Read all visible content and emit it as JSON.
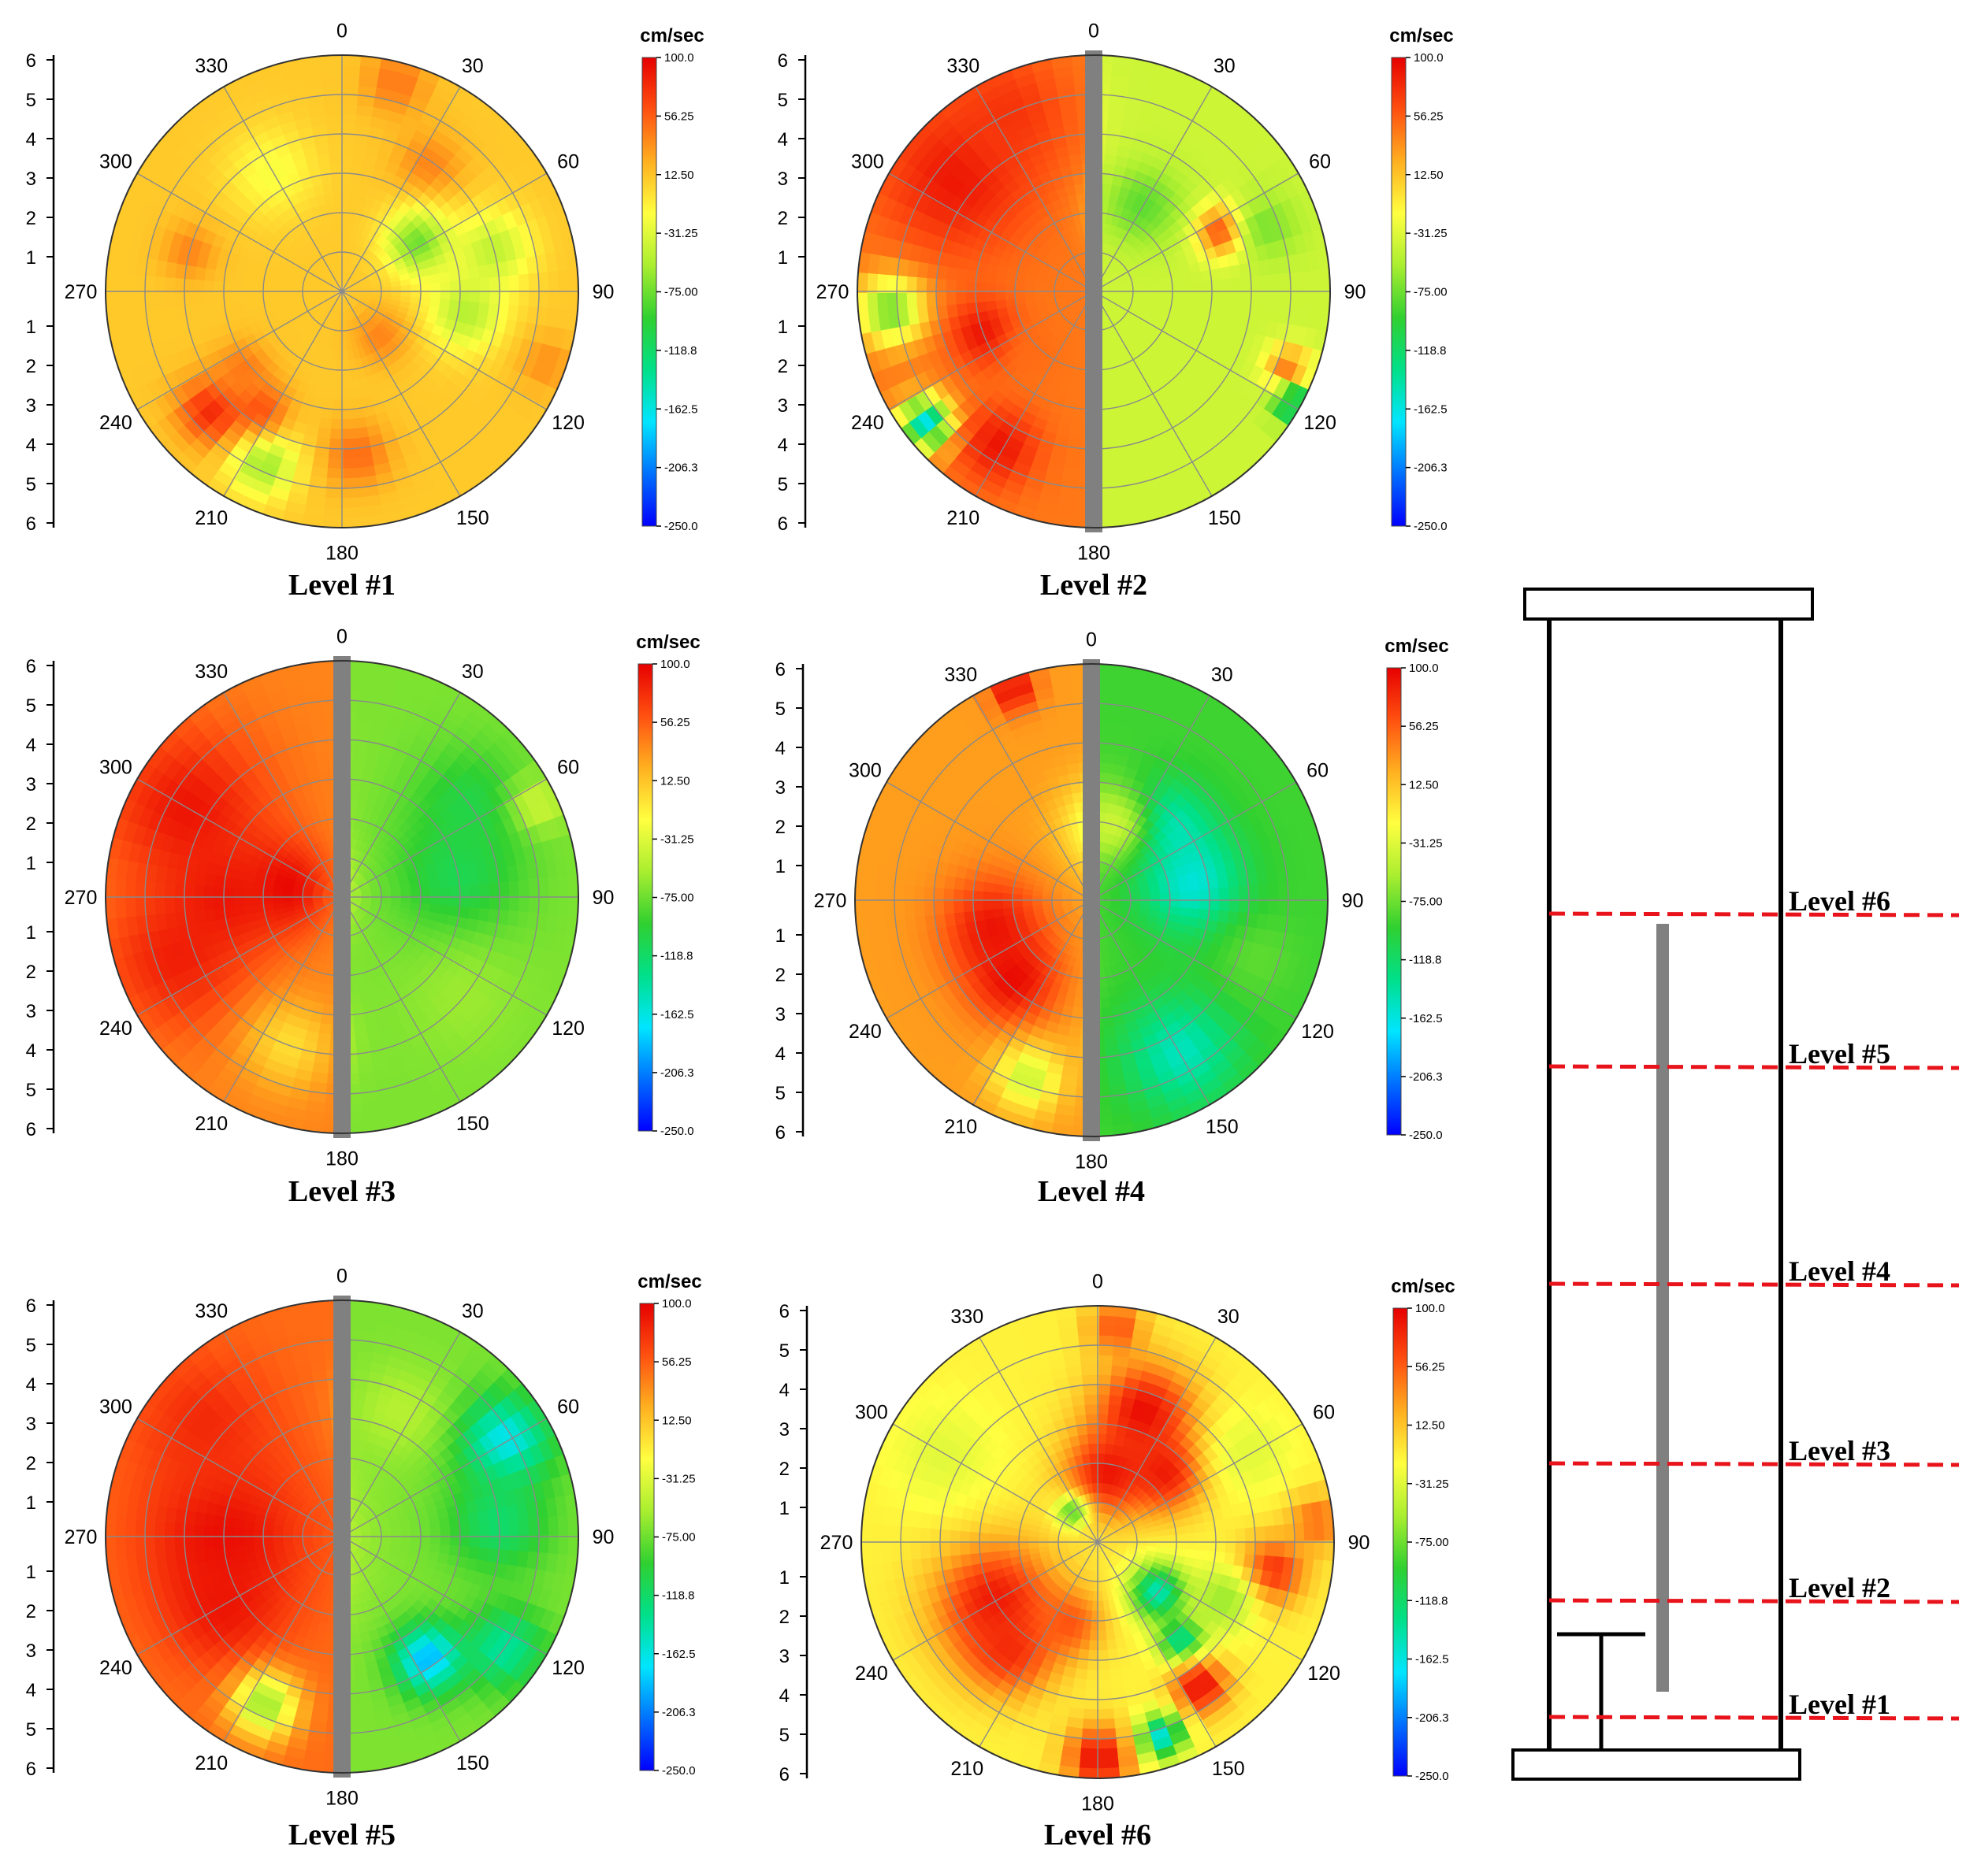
{
  "colorbar": {
    "unit": "cm/sec",
    "ticks": [
      "100.0",
      "56.25",
      "12.50",
      "-31.25",
      "-75.00",
      "-118.8",
      "-162.5",
      "-206.3",
      "-250.0"
    ],
    "min": -250,
    "max": 100,
    "colors": [
      "#0000ff",
      "#0070ff",
      "#00e5ff",
      "#00e08a",
      "#30d030",
      "#aaee30",
      "#ffff40",
      "#ffb020",
      "#ff5010",
      "#e60000"
    ]
  },
  "chart_data": [
    {
      "type": "heatmap",
      "title": "Level #1",
      "angle_ticks": [
        "0",
        "30",
        "60",
        "90",
        "120",
        "150",
        "180",
        "210",
        "240",
        "270",
        "300",
        "330"
      ],
      "radial_ticks": [
        "1",
        "2",
        "3",
        "4",
        "5",
        "6"
      ],
      "radial_range": [
        0,
        6
      ],
      "center_rod": false,
      "base": 10,
      "features": [
        {
          "angle": 15,
          "r": 5.5,
          "value": 45,
          "spread": 0.6
        },
        {
          "angle": 35,
          "r": 3.9,
          "value": 40,
          "spread": 0.6
        },
        {
          "angle": 58,
          "r": 2.3,
          "value": -75,
          "spread": 0.6
        },
        {
          "angle": 75,
          "r": 4.0,
          "value": -45,
          "spread": 0.7
        },
        {
          "angle": 100,
          "r": 3.2,
          "value": -50,
          "spread": 0.7
        },
        {
          "angle": 110,
          "r": 5.5,
          "value": 35,
          "spread": 0.5
        },
        {
          "angle": 140,
          "r": 1.5,
          "value": 40,
          "spread": 0.5
        },
        {
          "angle": 175,
          "r": 4.2,
          "value": 50,
          "spread": 0.6
        },
        {
          "angle": 205,
          "r": 4.8,
          "value": -60,
          "spread": 0.6
        },
        {
          "angle": 215,
          "r": 3.6,
          "value": 60,
          "spread": 0.5
        },
        {
          "angle": 228,
          "r": 4.5,
          "value": 80,
          "spread": 0.6
        },
        {
          "angle": 232,
          "r": 3.2,
          "value": 45,
          "spread": 0.5
        },
        {
          "angle": 285,
          "r": 4.0,
          "value": 40,
          "spread": 0.5
        },
        {
          "angle": 330,
          "r": 3.5,
          "value": -20,
          "spread": 0.8
        }
      ]
    },
    {
      "type": "heatmap",
      "title": "Level #2",
      "angle_ticks": [
        "0",
        "30",
        "60",
        "90",
        "120",
        "150",
        "180",
        "210",
        "240",
        "270",
        "300",
        "330"
      ],
      "radial_ticks": [
        "1",
        "2",
        "3",
        "4",
        "5",
        "6"
      ],
      "radial_range": [
        0,
        6
      ],
      "center_rod": true,
      "left_base": 45,
      "right_base": -40,
      "features": [
        {
          "angle": 310,
          "r": 4.5,
          "value": 90,
          "spread": 1.3
        },
        {
          "angle": 335,
          "r": 5.0,
          "value": 75,
          "spread": 1.0
        },
        {
          "angle": 265,
          "r": 5.2,
          "value": -75,
          "spread": 0.6
        },
        {
          "angle": 250,
          "r": 3.0,
          "value": 90,
          "spread": 0.6
        },
        {
          "angle": 232,
          "r": 5.4,
          "value": -170,
          "spread": 0.45
        },
        {
          "angle": 212,
          "r": 4.6,
          "value": 90,
          "spread": 0.7
        },
        {
          "angle": 225,
          "r": 2.2,
          "value": 50,
          "spread": 0.5
        },
        {
          "angle": 65,
          "r": 3.6,
          "value": 80,
          "spread": 0.45
        },
        {
          "angle": 70,
          "r": 4.7,
          "value": -70,
          "spread": 0.6
        },
        {
          "angle": 112,
          "r": 5.3,
          "value": 50,
          "spread": 0.4
        },
        {
          "angle": 120,
          "r": 5.8,
          "value": -130,
          "spread": 0.35
        },
        {
          "angle": 30,
          "r": 2.5,
          "value": -80,
          "spread": 0.7
        }
      ]
    },
    {
      "type": "heatmap",
      "title": "Level #3",
      "angle_ticks": [
        "0",
        "30",
        "60",
        "90",
        "120",
        "150",
        "180",
        "210",
        "240",
        "270",
        "300",
        "330"
      ],
      "radial_ticks": [
        "1",
        "2",
        "3",
        "4",
        "5",
        "6"
      ],
      "radial_range": [
        0,
        6
      ],
      "center_rod": true,
      "left_base": 40,
      "right_base": -70,
      "features": [
        {
          "angle": 280,
          "r": 1.5,
          "value": 100,
          "spread": 0.8
        },
        {
          "angle": 300,
          "r": 4.5,
          "value": 90,
          "spread": 1.5
        },
        {
          "angle": 250,
          "r": 4.5,
          "value": 85,
          "spread": 1.3
        },
        {
          "angle": 270,
          "r": 3.0,
          "value": 90,
          "spread": 1.0
        },
        {
          "angle": 200,
          "r": 4.0,
          "value": 0,
          "spread": 0.8
        },
        {
          "angle": 80,
          "r": 3.0,
          "value": -110,
          "spread": 1.1
        },
        {
          "angle": 55,
          "r": 4.0,
          "value": -105,
          "spread": 1.0
        },
        {
          "angle": 130,
          "r": 4.0,
          "value": -60,
          "spread": 1.0
        },
        {
          "angle": 65,
          "r": 5.5,
          "value": -40,
          "spread": 0.5
        }
      ]
    },
    {
      "type": "heatmap",
      "title": "Level #4",
      "angle_ticks": [
        "0",
        "30",
        "60",
        "90",
        "120",
        "150",
        "180",
        "210",
        "240",
        "270",
        "300",
        "330"
      ],
      "radial_ticks": [
        "1",
        "2",
        "3",
        "4",
        "5",
        "6"
      ],
      "radial_range": [
        0,
        6
      ],
      "center_rod": true,
      "left_base": 30,
      "right_base": -90,
      "features": [
        {
          "angle": 255,
          "r": 2.6,
          "value": 90,
          "spread": 0.9
        },
        {
          "angle": 225,
          "r": 2.8,
          "value": 95,
          "spread": 0.8
        },
        {
          "angle": 340,
          "r": 5.7,
          "value": 95,
          "spread": 0.4
        },
        {
          "angle": 200,
          "r": 4.8,
          "value": -40,
          "spread": 0.6
        },
        {
          "angle": 45,
          "r": 2.5,
          "value": -170,
          "spread": 0.8
        },
        {
          "angle": 80,
          "r": 2.6,
          "value": -160,
          "spread": 0.9
        },
        {
          "angle": 150,
          "r": 4.5,
          "value": -150,
          "spread": 1.0
        },
        {
          "angle": 15,
          "r": 2.0,
          "value": -40,
          "spread": 0.8
        },
        {
          "angle": 110,
          "r": 4.5,
          "value": -80,
          "spread": 0.7
        }
      ]
    },
    {
      "type": "heatmap",
      "title": "Level #5",
      "angle_ticks": [
        "0",
        "30",
        "60",
        "90",
        "120",
        "150",
        "180",
        "210",
        "240",
        "270",
        "300",
        "330"
      ],
      "radial_ticks": [
        "1",
        "2",
        "3",
        "4",
        "5",
        "6"
      ],
      "radial_range": [
        0,
        6
      ],
      "center_rod": true,
      "left_base": 50,
      "right_base": -70,
      "features": [
        {
          "angle": 270,
          "r": 3.0,
          "value": 95,
          "spread": 1.5
        },
        {
          "angle": 310,
          "r": 4.5,
          "value": 80,
          "spread": 1.2
        },
        {
          "angle": 240,
          "r": 3.5,
          "value": 90,
          "spread": 1.0
        },
        {
          "angle": 205,
          "r": 4.7,
          "value": -60,
          "spread": 0.6
        },
        {
          "angle": 60,
          "r": 4.8,
          "value": -170,
          "spread": 0.8
        },
        {
          "angle": 85,
          "r": 4.0,
          "value": -120,
          "spread": 0.9
        },
        {
          "angle": 145,
          "r": 3.8,
          "value": -190,
          "spread": 0.6
        },
        {
          "angle": 125,
          "r": 5.0,
          "value": -140,
          "spread": 0.7
        },
        {
          "angle": 25,
          "r": 3.5,
          "value": -50,
          "spread": 0.8
        }
      ]
    },
    {
      "type": "heatmap",
      "title": "Level #6",
      "angle_ticks": [
        "0",
        "30",
        "60",
        "90",
        "120",
        "150",
        "180",
        "210",
        "240",
        "270",
        "300",
        "330"
      ],
      "radial_ticks": [
        "1",
        "2",
        "3",
        "4",
        "5",
        "6"
      ],
      "radial_range": [
        0,
        6
      ],
      "center_rod": false,
      "base": -10,
      "features": [
        {
          "angle": 5,
          "r": 5.5,
          "value": 60,
          "spread": 0.5
        },
        {
          "angle": 20,
          "r": 3.5,
          "value": 95,
          "spread": 0.9
        },
        {
          "angle": 10,
          "r": 1.8,
          "value": 90,
          "spread": 0.8
        },
        {
          "angle": 45,
          "r": 2.5,
          "value": 90,
          "spread": 0.7
        },
        {
          "angle": 60,
          "r": 4.5,
          "value": -30,
          "spread": 0.8
        },
        {
          "angle": 240,
          "r": 3.0,
          "value": 90,
          "spread": 1.1
        },
        {
          "angle": 220,
          "r": 3.5,
          "value": 80,
          "spread": 0.8
        },
        {
          "angle": 200,
          "r": 2.2,
          "value": 60,
          "spread": 0.6
        },
        {
          "angle": 180,
          "r": 5.5,
          "value": 95,
          "spread": 0.6
        },
        {
          "angle": 130,
          "r": 2.0,
          "value": -150,
          "spread": 0.5
        },
        {
          "angle": 140,
          "r": 3.3,
          "value": -150,
          "spread": 0.4
        },
        {
          "angle": 145,
          "r": 4.5,
          "value": 95,
          "spread": 0.5
        },
        {
          "angle": 162,
          "r": 5.2,
          "value": -160,
          "spread": 0.4
        },
        {
          "angle": 100,
          "r": 4.5,
          "value": 80,
          "spread": 0.6
        },
        {
          "angle": 115,
          "r": 3.5,
          "value": -60,
          "spread": 0.6
        },
        {
          "angle": 85,
          "r": 5.6,
          "value": 50,
          "spread": 0.5
        },
        {
          "angle": 300,
          "r": 4.5,
          "value": -30,
          "spread": 1.0
        },
        {
          "angle": 320,
          "r": 1.0,
          "value": -80,
          "spread": 0.3
        }
      ]
    }
  ],
  "schematic": {
    "level_labels": [
      "Level #6",
      "Level #5",
      "Level #4",
      "Level #3",
      "Level #2",
      "Level #1"
    ],
    "line_color": "#e8131b",
    "rod_color": "#808080"
  }
}
